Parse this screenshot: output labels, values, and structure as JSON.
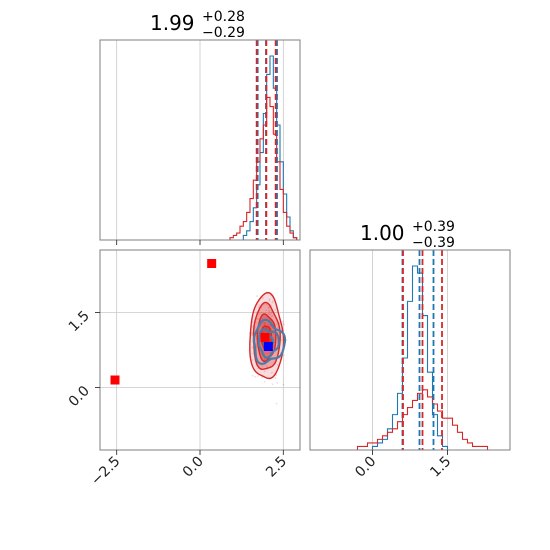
{
  "colors": {
    "red": "#d62728",
    "blue": "#1f77b4",
    "steel": "#4a7ea8",
    "marker_red": "#ff0000",
    "marker_blue": "#0000ff"
  },
  "chart_data": {
    "type": "corner",
    "parameters": 2,
    "panels": [
      {
        "id": "hist_p0",
        "type": "histogram",
        "title": {
          "value": "1.99",
          "upper": "+0.28",
          "lower": "−0.29"
        },
        "xlim": [
          -3,
          3
        ],
        "grid_x": [
          -2.5,
          0.0,
          2.5
        ],
        "quantiles": {
          "red": [
            1.7,
            1.99,
            2.27
          ],
          "blue": [
            1.73,
            1.98,
            2.31
          ]
        },
        "series": [
          {
            "name": "",
            "color": "red",
            "bin_edges": [
              0.9,
              1.0,
              1.1,
              1.2,
              1.3,
              1.4,
              1.5,
              1.6,
              1.7,
              1.8,
              1.9,
              2.0,
              2.1,
              2.2,
              2.3,
              2.4,
              2.5,
              2.6,
              2.7,
              2.8,
              2.9
            ],
            "counts": [
              1,
              2,
              3,
              6,
              8,
              12,
              18,
              26,
              34,
              44,
              50,
              62,
              58,
              46,
              34,
              22,
              12,
              6,
              3,
              1
            ]
          },
          {
            "name": "",
            "color": "blue",
            "bin_edges": [
              1.3,
              1.4,
              1.5,
              1.6,
              1.7,
              1.8,
              1.9,
              2.0,
              2.1,
              2.2,
              2.3,
              2.4,
              2.5,
              2.6,
              2.7,
              2.8,
              2.9
            ],
            "counts": [
              2,
              4,
              8,
              14,
              24,
              38,
              55,
              72,
              80,
              66,
              50,
              34,
              20,
              10,
              4,
              1
            ]
          }
        ]
      },
      {
        "id": "hist_p1",
        "type": "histogram",
        "title": {
          "value": "1.00",
          "upper": "+0.39",
          "lower": "−0.39"
        },
        "xlim": [
          -1.25,
          2.75
        ],
        "xticks": [
          0.0,
          1.5
        ],
        "xticklabels": [
          "0.0",
          "1.5"
        ],
        "grid_x": [
          0.0,
          1.5
        ],
        "quantiles": {
          "red": [
            0.61,
            1.0,
            1.39
          ],
          "blue": [
            0.6,
            0.94,
            1.22
          ]
        },
        "series": [
          {
            "name": "",
            "color": "red",
            "bin_edges": [
              -0.3,
              -0.2,
              -0.1,
              0.0,
              0.1,
              0.2,
              0.3,
              0.4,
              0.5,
              0.6,
              0.7,
              0.8,
              0.9,
              1.0,
              1.1,
              1.2,
              1.3,
              1.4,
              1.5,
              1.6,
              1.7,
              1.8,
              1.9,
              2.0,
              2.1,
              2.2,
              2.3
            ],
            "counts": [
              1,
              1,
              2,
              2,
              3,
              4,
              5,
              6,
              8,
              10,
              12,
              14,
              16,
              17,
              15,
              13,
              11,
              9,
              9,
              7,
              5,
              3,
              2,
              1,
              1,
              1
            ]
          },
          {
            "name": "",
            "color": "blue",
            "bin_edges": [
              0.0,
              0.1,
              0.2,
              0.3,
              0.4,
              0.5,
              0.6,
              0.7,
              0.8,
              0.9,
              1.0,
              1.1,
              1.2,
              1.3,
              1.4,
              1.5
            ],
            "counts": [
              1,
              2,
              3,
              6,
              10,
              16,
              26,
              42,
              52,
              50,
              38,
              22,
              10,
              4,
              1
            ]
          }
        ]
      },
      {
        "id": "joint_p0_p1",
        "type": "2d-contour",
        "xlim": [
          -3,
          3
        ],
        "ylim": [
          -1.25,
          2.75
        ],
        "xticks": [
          -2.5,
          0.0,
          2.5
        ],
        "xticklabels": [
          "−2.5",
          "0.0",
          "2.5"
        ],
        "yticks": [
          0.0,
          1.5
        ],
        "yticklabels": [
          "0.0",
          "1.5"
        ],
        "grid_x": [
          -2.5,
          0.0,
          2.5
        ],
        "grid_y": [
          0.0,
          1.5
        ],
        "red_contours": {
          "center": [
            1.99,
            1.0
          ],
          "levels": [
            {
              "sx": 0.5,
              "sy": 0.85,
              "opacity": 0.3
            },
            {
              "sx": 0.4,
              "sy": 0.66,
              "opacity": 0.55
            },
            {
              "sx": 0.28,
              "sy": 0.46,
              "opacity": 0.8
            },
            {
              "sx": 0.15,
              "sy": 0.24,
              "opacity": 0.95
            }
          ]
        },
        "blue_contours": {
          "center": [
            2.05,
            0.9
          ],
          "levels": [
            {
              "sx": 0.46,
              "sy": 0.4
            },
            {
              "sx": 0.3,
              "sy": 0.26
            },
            {
              "sx": 0.14,
              "sy": 0.12
            }
          ]
        },
        "markers": [
          {
            "color": "marker_red",
            "x": 0.35,
            "y": 2.48
          },
          {
            "color": "marker_red",
            "x": -2.55,
            "y": 0.15
          },
          {
            "color": "marker_red",
            "x": 1.95,
            "y": 1.0
          },
          {
            "color": "marker_blue",
            "x": 2.05,
            "y": 0.82
          }
        ]
      }
    ]
  }
}
